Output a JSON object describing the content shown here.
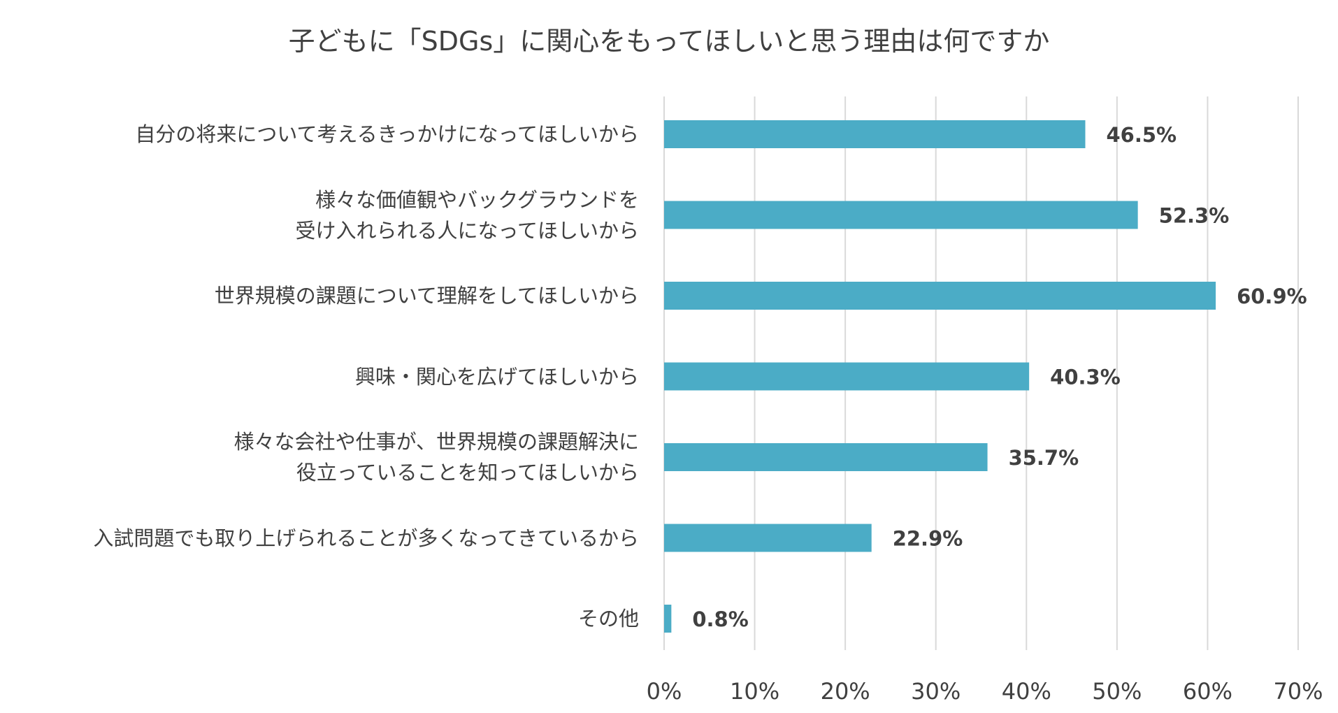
{
  "chart_data": {
    "type": "bar",
    "orientation": "horizontal",
    "title": "子どもに「SDGs」に関心をもってほしいと思う理由は何ですか",
    "categories": [
      [
        "自分の将来について考えるきっかけになってほしいから"
      ],
      [
        "様々な価値観やバックグラウンドを",
        "受け入れられる人になってほしいから"
      ],
      [
        "世界規模の課題について理解をしてほしいから"
      ],
      [
        "興味・関心を広げてほしいから"
      ],
      [
        "様々な会社や仕事が、世界規模の課題解決に",
        "役立っていることを知ってほしいから"
      ],
      [
        "入試問題でも取り上げられることが多くなってきているから"
      ],
      [
        "その他"
      ]
    ],
    "values": [
      46.5,
      52.3,
      60.9,
      40.3,
      35.7,
      22.9,
      0.8
    ],
    "data_labels": [
      "46.5%",
      "52.3%",
      "60.9%",
      "40.3%",
      "35.7%",
      "22.9%",
      "0.8%"
    ],
    "xlim": [
      0,
      70
    ],
    "xticks": [
      0,
      10,
      20,
      30,
      40,
      50,
      60,
      70
    ],
    "xtick_labels": [
      "0%",
      "10%",
      "20%",
      "30%",
      "40%",
      "50%",
      "60%",
      "70%"
    ],
    "grid": true,
    "bar_color": "#4BACC6",
    "grid_color": "#D9D9D9",
    "label_color": "#404040"
  }
}
